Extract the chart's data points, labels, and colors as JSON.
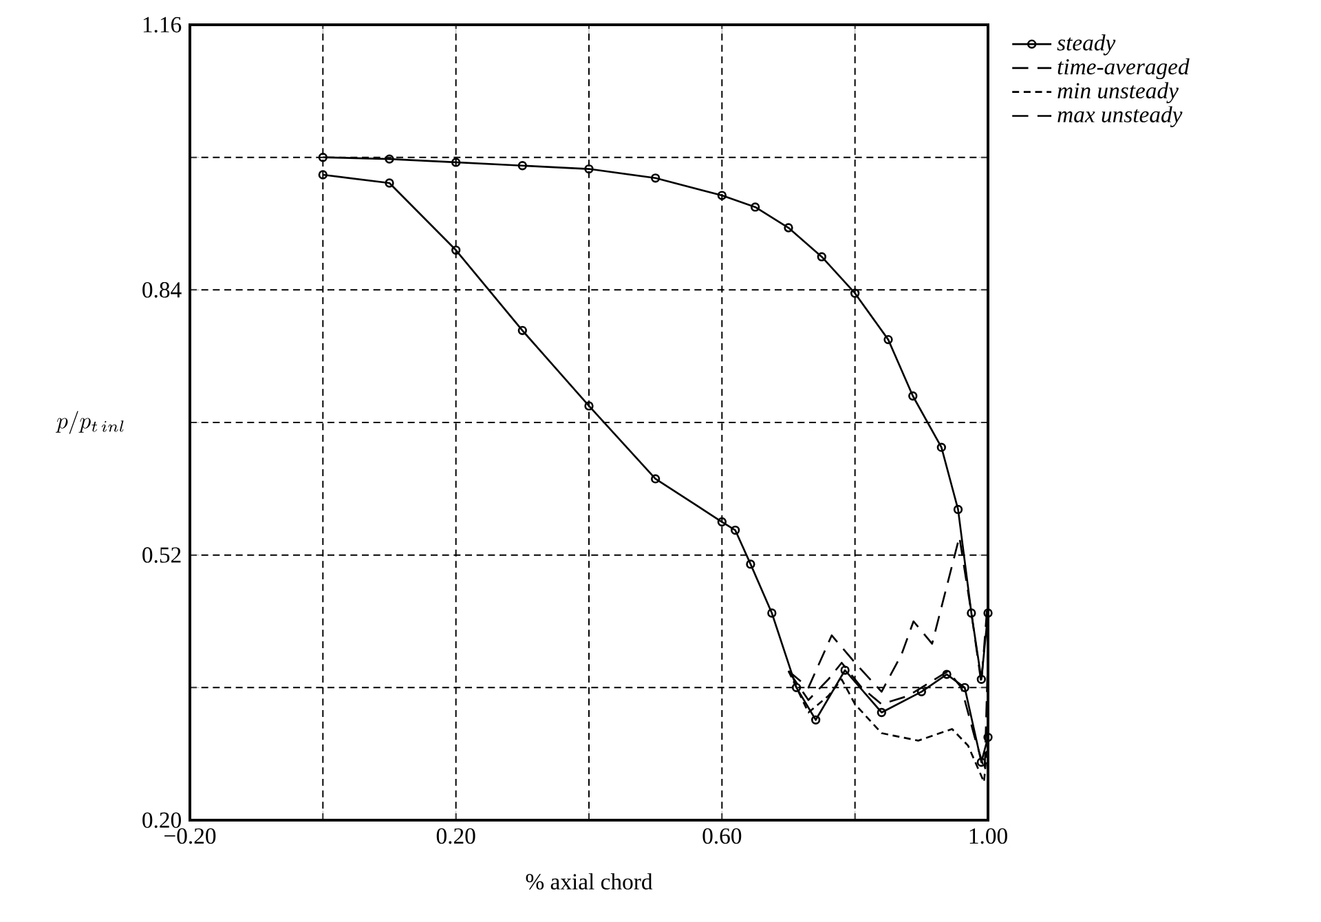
{
  "chart_data": {
    "type": "line",
    "xlabel": "% axial chord",
    "ylabel": "p/p_{t\\,inl}",
    "xlim": [
      -0.2,
      1.0
    ],
    "ylim": [
      0.2,
      1.16
    ],
    "xticks": [
      {
        "value": -0.2,
        "label": "−0.20"
      },
      {
        "value": 0,
        "label": null
      },
      {
        "value": 0.2,
        "label": "0.20"
      },
      {
        "value": 0.4,
        "label": null
      },
      {
        "value": 0.6,
        "label": "0.60"
      },
      {
        "value": 0.8,
        "label": null
      },
      {
        "value": 1.0,
        "label": "1.00"
      }
    ],
    "yticks": [
      {
        "value": 0.2,
        "label": "0.20"
      },
      {
        "value": 0.36,
        "label": null
      },
      {
        "value": 0.52,
        "label": "0.52"
      },
      {
        "value": 0.68,
        "label": null
      },
      {
        "value": 0.84,
        "label": "0.84"
      },
      {
        "value": 1.0,
        "label": null
      },
      {
        "value": 1.16,
        "label": "1.16"
      }
    ],
    "grid": true,
    "legend": "top right",
    "series": [
      {
        "name": "steady",
        "color": "#000000",
        "marker": "circle",
        "line_style": "solid",
        "x": [
          0,
          0.1,
          0.2,
          0.3,
          0.4,
          0.5,
          0.6,
          0.65,
          0.7,
          0.75,
          0.8,
          0.85,
          0.887,
          0.93,
          0.955,
          0.975,
          0.99,
          1.0
        ],
        "values": [
          1.0,
          0.998,
          0.994,
          0.99,
          0.986,
          0.975,
          0.954,
          0.94,
          0.915,
          0.88,
          0.836,
          0.78,
          0.712,
          0.65,
          0.575,
          0.45,
          0.37,
          0.45
        ]
      },
      {
        "color": "#000000",
        "marker": "circle",
        "line_style": "solid",
        "x": [
          0,
          0.1,
          0.2,
          0.3,
          0.4,
          0.5,
          0.6,
          0.62,
          0.643,
          0.675,
          0.712,
          0.741,
          0.785,
          0.84,
          0.9,
          0.938,
          0.965,
          0.99,
          1.0
        ],
        "values": [
          0.979,
          0.969,
          0.888,
          0.791,
          0.7,
          0.612,
          0.56,
          0.55,
          0.509,
          0.45,
          0.36,
          0.321,
          0.381,
          0.33,
          0.355,
          0.376,
          0.36,
          0.27,
          0.3
        ]
      },
      {
        "name": "time-averaged",
        "color": "#000000",
        "marker": "none",
        "line_style": "dashed",
        "x": [
          0.7,
          0.73,
          0.76,
          0.78,
          0.81,
          0.84,
          0.88,
          0.92,
          0.94,
          0.96,
          0.98,
          0.995,
          1.0
        ],
        "values": [
          0.38,
          0.345,
          0.37,
          0.39,
          0.36,
          0.34,
          0.35,
          0.37,
          0.38,
          0.36,
          0.3,
          0.26,
          0.4
        ]
      },
      {
        "name": "min unsteady",
        "color": "#000000",
        "marker": "none",
        "line_style": "dotted",
        "x": [
          0.7,
          0.73,
          0.76,
          0.78,
          0.8,
          0.84,
          0.895,
          0.946,
          0.97,
          0.994,
          1.0
        ],
        "values": [
          0.38,
          0.33,
          0.35,
          0.37,
          0.34,
          0.305,
          0.296,
          0.31,
          0.29,
          0.246,
          0.3
        ]
      },
      {
        "name": "max unsteady",
        "color": "#000000",
        "marker": "none",
        "line_style": "dashed",
        "x": [
          0.7,
          0.73,
          0.765,
          0.8,
          0.84,
          0.87,
          0.888,
          0.916,
          0.957,
          0.975,
          0.99,
          1.0
        ],
        "values": [
          0.38,
          0.36,
          0.423,
          0.39,
          0.355,
          0.4,
          0.44,
          0.413,
          0.542,
          0.45,
          0.365,
          0.47
        ]
      }
    ]
  }
}
